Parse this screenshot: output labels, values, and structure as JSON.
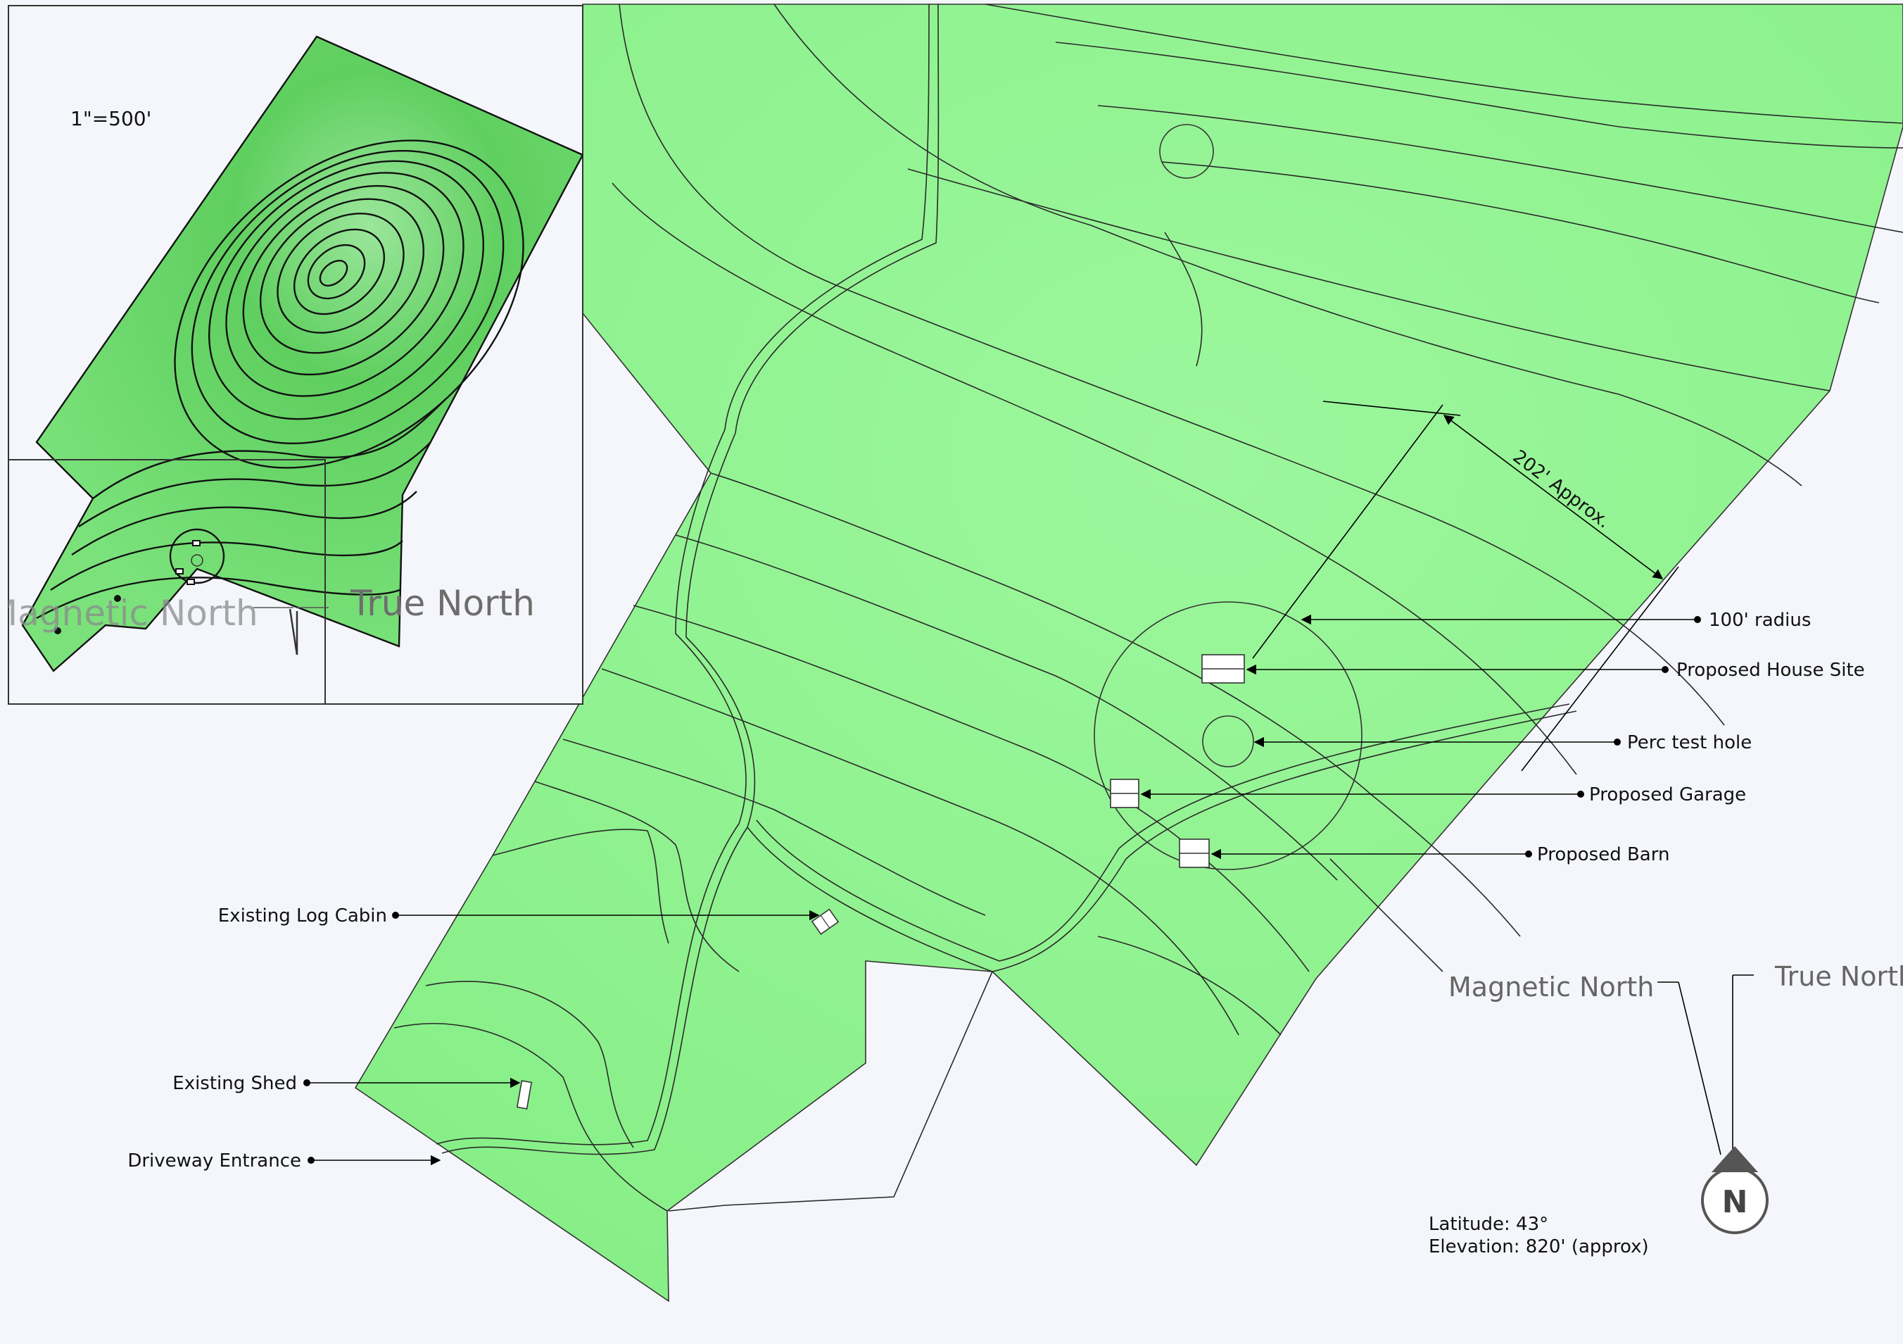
{
  "inset": {
    "scale": "1\"=500'",
    "magnetic_north": "Magnetic North",
    "true_north": "True North"
  },
  "dimension": {
    "text": "202' Approx."
  },
  "annotations": {
    "radius": "100' radius",
    "house_site": "Proposed House Site",
    "perc_test": "Perc test hole",
    "garage": "Proposed Garage",
    "barn": "Proposed Barn",
    "log_cabin": "Existing Log Cabin",
    "shed": "Existing Shed",
    "driveway": "Driveway Entrance"
  },
  "compass": {
    "magnetic_north": "Magnetic North",
    "true_north": "True North",
    "letter": "N"
  },
  "info": {
    "latitude": "Latitude: 43°",
    "elevation": "Elevation: 820' (approx)"
  },
  "colors": {
    "parcel_fill": "#8ef28e",
    "background": "#f4f6fb",
    "line": "#222222"
  }
}
